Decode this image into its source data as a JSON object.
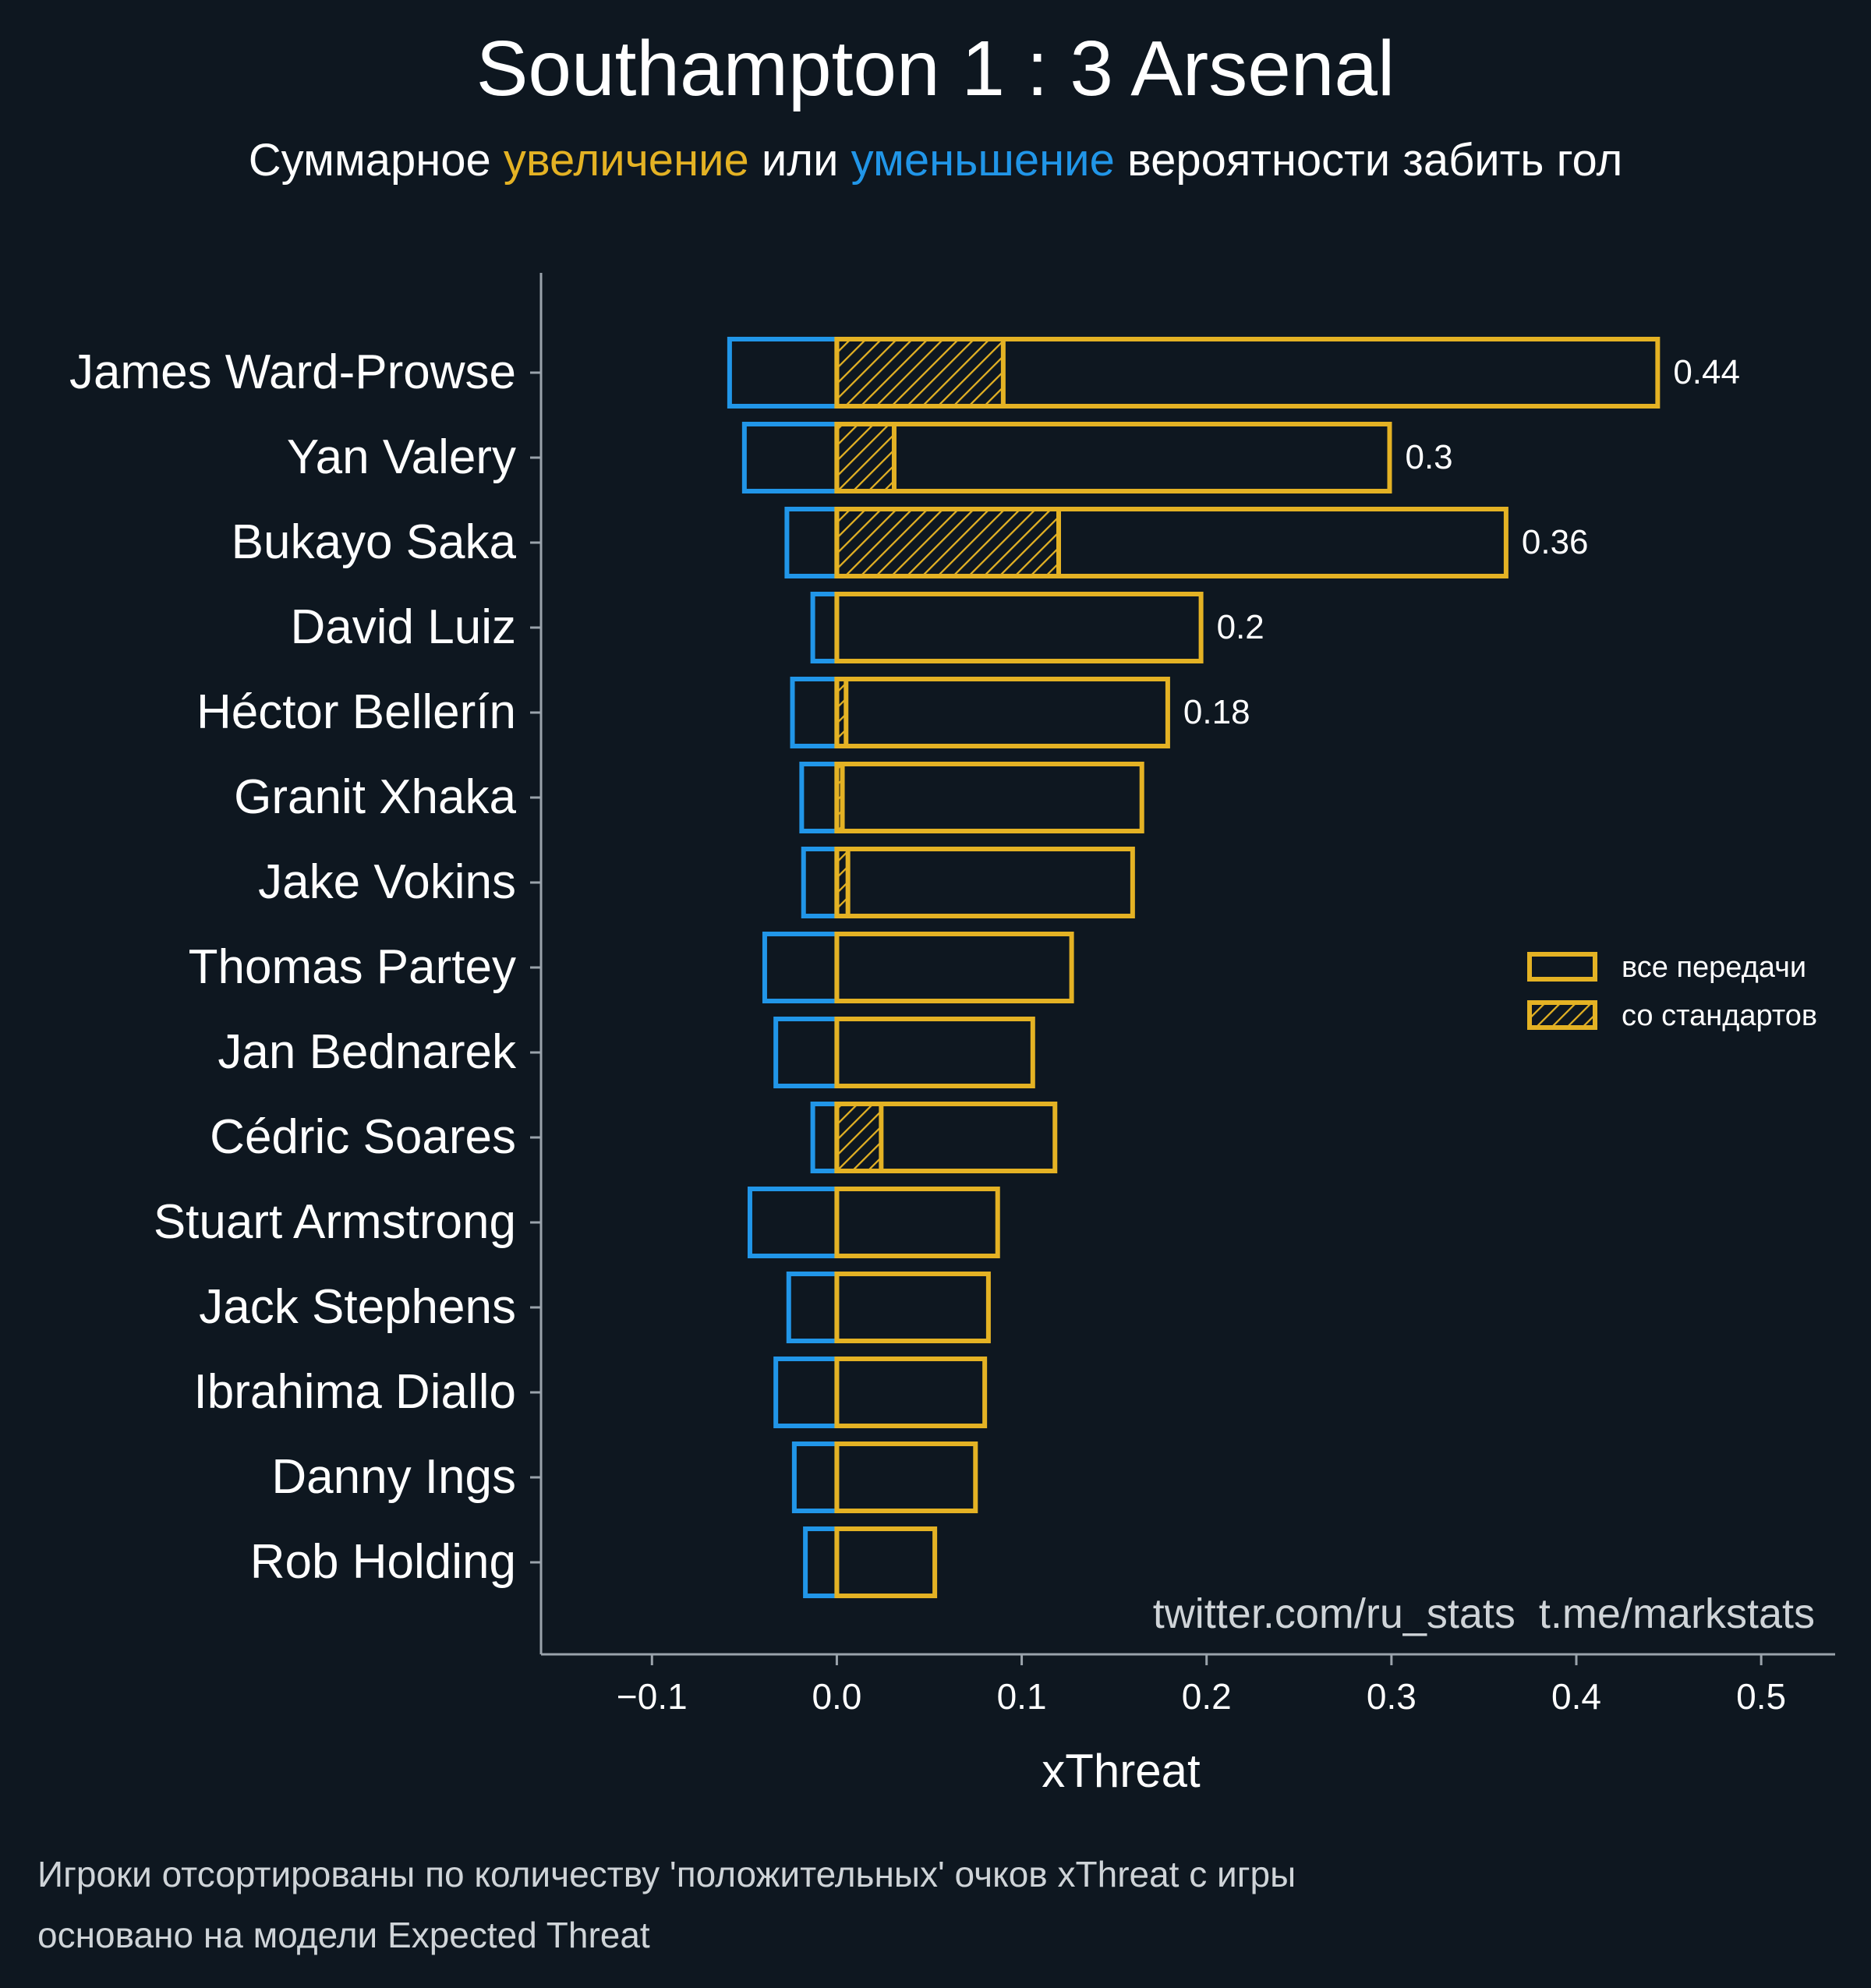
{
  "colors": {
    "background": "#0e1720",
    "positive": "#e4b224",
    "negative": "#2196e8",
    "text": "#ffffff",
    "muted": "#cfd4d8",
    "axis": "#9aa3ab"
  },
  "chart_data": {
    "type": "bar",
    "orientation": "horizontal",
    "title": "Southampton 1 : 3 Arsenal",
    "subtitle": {
      "prefix": "Суммарное ",
      "increase": "увеличение",
      "middle": " или ",
      "decrease": "уменьшение",
      "suffix": " вероятности забить гол"
    },
    "xlabel": "xThreat",
    "xlim": [
      -0.16,
      0.54
    ],
    "xticks": [
      -0.1,
      0.0,
      0.1,
      0.2,
      0.3,
      0.4,
      0.5
    ],
    "xtick_labels": [
      "−0.1",
      "0.0",
      "0.1",
      "0.2",
      "0.3",
      "0.4",
      "0.5"
    ],
    "categories": [
      "James Ward-Prowse",
      "Yan Valery",
      "Bukayo Saka",
      "David Luiz",
      "Héctor Bellerín",
      "Granit Xhaka",
      "Jake Vokins",
      "Thomas Partey",
      "Jan Bednarek",
      "Cédric Soares",
      "Stuart Armstrong",
      "Jack Stephens",
      "Ibrahima Diallo",
      "Danny Ings",
      "Rob Holding"
    ],
    "series": [
      {
        "name": "все передачи",
        "values": [
          0.444,
          0.299,
          0.362,
          0.197,
          0.179,
          0.165,
          0.16,
          0.127,
          0.106,
          0.118,
          0.087,
          0.082,
          0.08,
          0.075,
          0.053
        ]
      },
      {
        "name": "со стандартов",
        "values": [
          0.09,
          0.031,
          0.12,
          0.0,
          0.005,
          0.003,
          0.006,
          0.0,
          0.0,
          0.024,
          0.0,
          0.0,
          0.0,
          0.0,
          0.0
        ]
      },
      {
        "name": "уменьшение",
        "values": [
          -0.058,
          -0.05,
          -0.027,
          -0.013,
          -0.024,
          -0.019,
          -0.018,
          -0.039,
          -0.033,
          -0.013,
          -0.047,
          -0.026,
          -0.033,
          -0.023,
          -0.017
        ]
      }
    ],
    "value_labels": [
      "0.44",
      "0.3",
      "0.36",
      "0.2",
      "0.18"
    ],
    "legend": {
      "position": "right",
      "items": [
        "все передачи",
        "со стандартов"
      ]
    },
    "watermark": "twitter.com/ru_stats  t.me/markstats",
    "footnotes": [
      "Игроки отсортированы по количеству 'положительных' очков xThreat с игры",
      "основано на модели Expected Threat"
    ]
  }
}
